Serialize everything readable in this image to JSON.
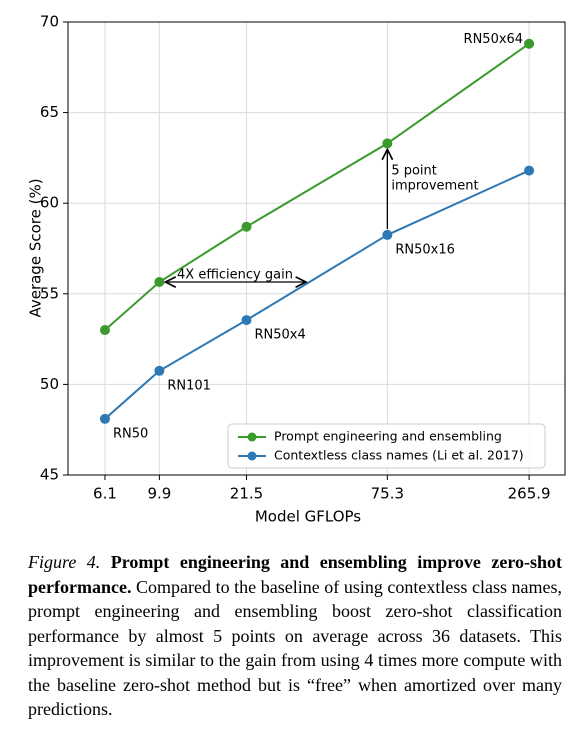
{
  "chart_data": {
    "type": "line",
    "x_label": "Model GFLOPs",
    "y_label": "Average Score (%)",
    "x": [
      6.1,
      9.9,
      21.5,
      75.3,
      265.9
    ],
    "xscale": "log",
    "xlim": [
      4.39,
      366
    ],
    "xticks": [
      6.1,
      9.9,
      21.5,
      75.3,
      265.9
    ],
    "ylim": [
      45,
      70
    ],
    "yticks": [
      45,
      50,
      55,
      60,
      65,
      70
    ],
    "grid": true,
    "series": [
      {
        "name": "Prompt engineering and ensembling",
        "color": "#3a9a2c",
        "values": [
          53.0,
          55.65,
          58.7,
          63.3,
          68.8
        ]
      },
      {
        "name": "Contextless class names (Li et al. 2017)",
        "color": "#2e78b4",
        "values": [
          48.1,
          50.75,
          53.55,
          58.25,
          61.8
        ]
      }
    ],
    "point_labels": [
      "RN50",
      "RN101",
      "RN50x4",
      "RN50x16",
      "RN50x64"
    ],
    "annotations": {
      "efficiency": "4X efficiency gain",
      "improvement": [
        "5 point",
        "improvement"
      ]
    },
    "legend": "lower right"
  },
  "caption": {
    "label": "Figure 4.",
    "title": "Prompt engineering and ensembling improve zero-shot performance.",
    "text": "Compared to the baseline of using contextless class names, prompt engineering and ensembling boost zero-shot classification performance by almost 5 points on average across 36 datasets. This improvement is similar to the gain from using 4 times more compute with the baseline zero-shot method but is “free” when amortized over many predictions."
  }
}
